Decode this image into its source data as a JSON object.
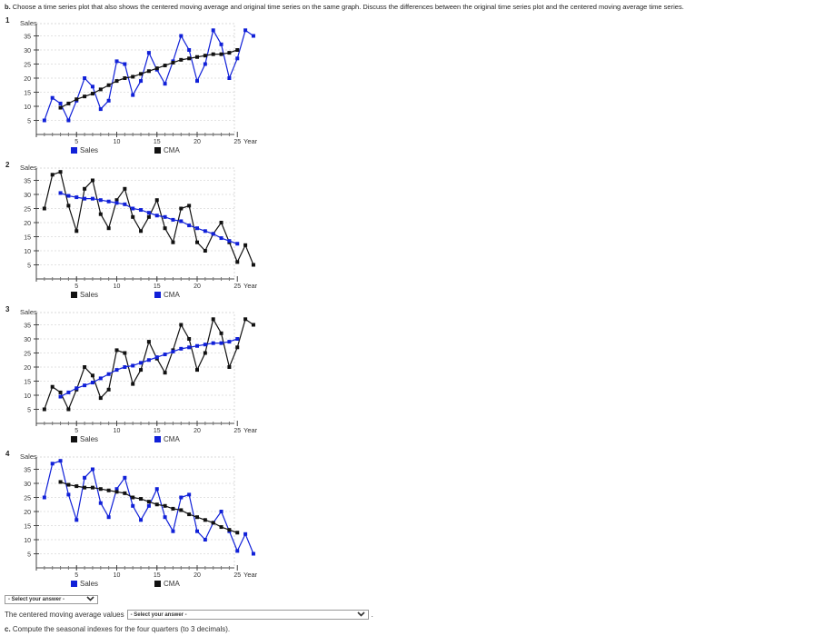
{
  "question": {
    "label": "b.",
    "text": "Choose a time series plot that also shows the centered moving average and original time series on the same graph. Discuss the differences between the original time series plot and the centered moving average time series."
  },
  "colors": {
    "blue": "#1020d8",
    "black": "#111111"
  },
  "chart_data": [
    {
      "type": "line",
      "option": "1",
      "ylabel": "Sales",
      "xlabel": "Year",
      "xticks": [
        "5",
        "10",
        "15",
        "20",
        "25"
      ],
      "yticks": [
        "5",
        "10",
        "15",
        "20",
        "25",
        "30",
        "35"
      ],
      "ylim": [
        0,
        40
      ],
      "xlim": [
        0,
        30
      ],
      "legend": [
        "Sales",
        "CMA"
      ],
      "series": [
        {
          "name": "Sales",
          "color": "#1020d8",
          "x": [
            1,
            2,
            3,
            4,
            5,
            6,
            7,
            8,
            9,
            10,
            11,
            12,
            13,
            14,
            15,
            16,
            17,
            18,
            19,
            20,
            21,
            22,
            23,
            24,
            25,
            26,
            27
          ],
          "values": [
            5,
            13,
            11,
            5,
            12,
            20,
            17,
            9,
            12,
            26,
            25,
            14,
            19,
            29,
            23,
            18,
            26,
            35,
            30,
            19,
            25,
            37,
            32,
            20,
            27,
            37,
            35
          ]
        },
        {
          "name": "CMA",
          "color": "#111111",
          "x": [
            3,
            4,
            5,
            6,
            7,
            8,
            9,
            10,
            11,
            12,
            13,
            14,
            15,
            16,
            17,
            18,
            19,
            20,
            21,
            22,
            23,
            24,
            25
          ],
          "values": [
            9.5,
            11,
            12.5,
            13.5,
            14.5,
            16,
            17.5,
            19,
            20,
            20.5,
            21.5,
            22.5,
            23.5,
            24.5,
            25.5,
            26.5,
            27,
            27.5,
            28,
            28.5,
            28.5,
            29,
            30
          ]
        }
      ]
    },
    {
      "type": "line",
      "option": "2",
      "ylabel": "Sales",
      "xlabel": "Year",
      "xticks": [
        "5",
        "10",
        "15",
        "20",
        "25"
      ],
      "yticks": [
        "5",
        "10",
        "15",
        "20",
        "25",
        "30",
        "35"
      ],
      "ylim": [
        0,
        40
      ],
      "xlim": [
        0,
        30
      ],
      "legend": [
        "Sales",
        "CMA"
      ],
      "series": [
        {
          "name": "Sales",
          "color": "#111111",
          "x": [
            1,
            2,
            3,
            4,
            5,
            6,
            7,
            8,
            9,
            10,
            11,
            12,
            13,
            14,
            15,
            16,
            17,
            18,
            19,
            20,
            21,
            22,
            23,
            24,
            25,
            26,
            27
          ],
          "values": [
            25,
            37,
            38,
            26,
            17,
            32,
            35,
            23,
            18,
            28,
            32,
            22,
            17,
            22,
            28,
            18,
            13,
            25,
            26,
            13,
            10,
            16,
            20,
            13,
            6,
            12,
            5
          ]
        },
        {
          "name": "CMA",
          "color": "#1020d8",
          "x": [
            3,
            4,
            5,
            6,
            7,
            8,
            9,
            10,
            11,
            12,
            13,
            14,
            15,
            16,
            17,
            18,
            19,
            20,
            21,
            22,
            23,
            24,
            25
          ],
          "values": [
            30.5,
            29.5,
            29,
            28.5,
            28.5,
            28,
            27.5,
            27,
            26.5,
            25,
            24.5,
            23.5,
            22.5,
            22,
            21,
            20.5,
            19,
            18,
            17,
            16,
            14.5,
            13.5,
            12.5
          ]
        }
      ]
    },
    {
      "type": "line",
      "option": "3",
      "ylabel": "Sales",
      "xlabel": "Year",
      "xticks": [
        "5",
        "10",
        "15",
        "20",
        "25"
      ],
      "yticks": [
        "5",
        "10",
        "15",
        "20",
        "25",
        "30",
        "35"
      ],
      "ylim": [
        0,
        40
      ],
      "xlim": [
        0,
        30
      ],
      "legend": [
        "Sales",
        "CMA"
      ],
      "series": [
        {
          "name": "Sales",
          "color": "#111111",
          "x": [
            1,
            2,
            3,
            4,
            5,
            6,
            7,
            8,
            9,
            10,
            11,
            12,
            13,
            14,
            15,
            16,
            17,
            18,
            19,
            20,
            21,
            22,
            23,
            24,
            25,
            26,
            27
          ],
          "values": [
            5,
            13,
            11,
            5,
            12,
            20,
            17,
            9,
            12,
            26,
            25,
            14,
            19,
            29,
            23,
            18,
            26,
            35,
            30,
            19,
            25,
            37,
            32,
            20,
            27,
            37,
            35
          ]
        },
        {
          "name": "CMA",
          "color": "#1020d8",
          "x": [
            3,
            4,
            5,
            6,
            7,
            8,
            9,
            10,
            11,
            12,
            13,
            14,
            15,
            16,
            17,
            18,
            19,
            20,
            21,
            22,
            23,
            24,
            25
          ],
          "values": [
            9.5,
            11,
            12.5,
            13.5,
            14.5,
            16,
            17.5,
            19,
            20,
            20.5,
            21.5,
            22.5,
            23.5,
            24.5,
            25.5,
            26.5,
            27,
            27.5,
            28,
            28.5,
            28.5,
            29,
            30
          ]
        }
      ]
    },
    {
      "type": "line",
      "option": "4",
      "ylabel": "Sales",
      "xlabel": "Year",
      "xticks": [
        "5",
        "10",
        "15",
        "20",
        "25"
      ],
      "yticks": [
        "5",
        "10",
        "15",
        "20",
        "25",
        "30",
        "35"
      ],
      "ylim": [
        0,
        40
      ],
      "xlim": [
        0,
        30
      ],
      "legend": [
        "Sales",
        "CMA"
      ],
      "series": [
        {
          "name": "Sales",
          "color": "#1020d8",
          "x": [
            1,
            2,
            3,
            4,
            5,
            6,
            7,
            8,
            9,
            10,
            11,
            12,
            13,
            14,
            15,
            16,
            17,
            18,
            19,
            20,
            21,
            22,
            23,
            24,
            25,
            26,
            27
          ],
          "values": [
            25,
            37,
            38,
            26,
            17,
            32,
            35,
            23,
            18,
            28,
            32,
            22,
            17,
            22,
            28,
            18,
            13,
            25,
            26,
            13,
            10,
            16,
            20,
            13,
            6,
            12,
            5
          ]
        },
        {
          "name": "CMA",
          "color": "#111111",
          "x": [
            3,
            4,
            5,
            6,
            7,
            8,
            9,
            10,
            11,
            12,
            13,
            14,
            15,
            16,
            17,
            18,
            19,
            20,
            21,
            22,
            23,
            24,
            25
          ],
          "values": [
            30.5,
            29.5,
            29,
            28.5,
            28.5,
            28,
            27.5,
            27,
            26.5,
            25,
            24.5,
            23.5,
            22.5,
            22,
            21,
            20.5,
            19,
            18,
            17,
            16,
            14.5,
            13.5,
            12.5
          ]
        }
      ]
    }
  ],
  "select1": {
    "value": "- Select your answer -",
    "icon": "chevron-down-icon"
  },
  "cma_line": {
    "prefix": "The centered moving average values",
    "select_value": "- Select your answer -",
    "suffix": "."
  },
  "part_c": {
    "label": "c.",
    "text": "Compute the seasonal indexes for the four quarters (to 3 decimals)."
  }
}
